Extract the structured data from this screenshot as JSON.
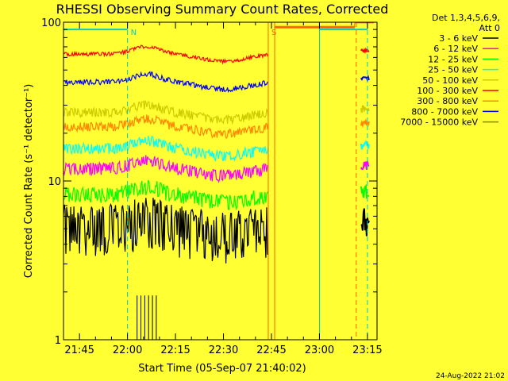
{
  "chart_data": {
    "type": "line",
    "title": "RHESSI Observing Summary Count Rates, Corrected",
    "xlabel": "Start Time (05-Sep-07 21:40:02)",
    "ylabel": "Corrected Count Rate (s⁻¹ detector⁻¹)",
    "yscale": "log",
    "ylim": [
      1,
      100
    ],
    "xlim_minutes": [
      0,
      98
    ],
    "x_ticks": [
      "21:45",
      "22:00",
      "22:15",
      "22:30",
      "22:45",
      "23:00",
      "23:15"
    ],
    "x_tick_minutes": [
      5,
      20,
      35,
      50,
      65,
      80,
      95
    ],
    "y_ticks": [
      "1",
      "10",
      "100"
    ],
    "y_tick_values": [
      1,
      10,
      100
    ],
    "legend_header": [
      "Det 1,3,4,5,6,9,",
      "Att 0"
    ],
    "legend_position": "right",
    "series": [
      {
        "name": "3 - 6 keV",
        "color": "#000000",
        "base": 5.2,
        "noise": 0.28
      },
      {
        "name": "6 - 12 keV",
        "color": "#ff00ff",
        "base": 12.0,
        "noise": 0.07
      },
      {
        "name": "12 - 25 keV",
        "color": "#00ff00",
        "base": 8.2,
        "noise": 0.09
      },
      {
        "name": "25 - 50 keV",
        "color": "#00ffff",
        "base": 16.0,
        "noise": 0.06
      },
      {
        "name": "50 - 100 keV",
        "color": "#cccc00",
        "base": 27.0,
        "noise": 0.05
      },
      {
        "name": "100 - 300 keV",
        "color": "#ff0000",
        "base": 63.0,
        "noise": 0.02
      },
      {
        "name": "300 - 800 keV",
        "color": "#ff8800",
        "base": 22.0,
        "noise": 0.05
      },
      {
        "name": "800 - 7000 keV",
        "color": "#0000ff",
        "base": 42.0,
        "noise": 0.03
      },
      {
        "name": "7000 - 15000 keV",
        "color": "#888800",
        "base": 0,
        "noise": 0
      }
    ],
    "data_interval_minutes": [
      0,
      64
    ],
    "second_interval_minutes": [
      93,
      95.5
    ],
    "flags": [
      {
        "label": "N",
        "minute": 20,
        "color": "#00cccc"
      },
      {
        "label": "S",
        "minute": 64,
        "color": "#ff6600"
      }
    ],
    "footer": "24-Aug-2022 21:02",
    "colors": {
      "background": "#ffff33",
      "axes": "#000000",
      "orbit_line": "#00cccc",
      "saa_line": "#ff6600"
    }
  }
}
